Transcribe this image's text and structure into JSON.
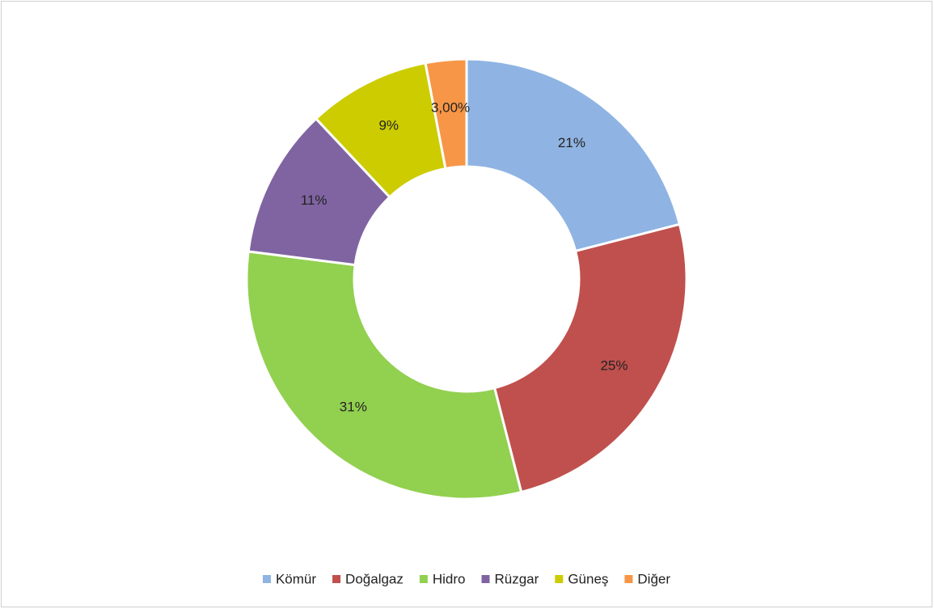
{
  "chart_data": {
    "type": "donut",
    "categories": [
      "Kömür",
      "Doğalgaz",
      "Hidro",
      "Rüzgar",
      "Güneş",
      "Diğer"
    ],
    "values": [
      21,
      25,
      31,
      11,
      9,
      3
    ],
    "value_labels": [
      "21%",
      "25%",
      "31%",
      "11%",
      "9%",
      "3,00%"
    ],
    "colors": [
      "#8fb4e3",
      "#c0504d",
      "#92d050",
      "#8064a2",
      "#cccc00",
      "#f79646"
    ],
    "legend": "bottom"
  }
}
